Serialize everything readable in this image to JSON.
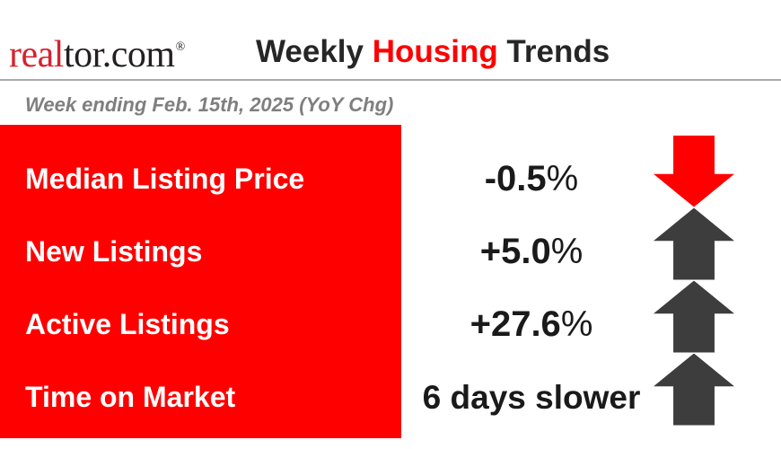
{
  "logo": {
    "prefix": "real",
    "suffix": "tor.com",
    "registered": "®",
    "prefix_color": "#d6232e",
    "suffix_color": "#231f20"
  },
  "header": {
    "title_prefix": "Weekly ",
    "title_highlight": "Housing",
    "title_suffix": " Trends",
    "highlight_color": "#ff0000",
    "text_color": "#262626"
  },
  "subtitle": "Week ending Feb. 15th, 2025 (YoY Chg)",
  "panel": {
    "background": "#ff0000"
  },
  "rows": [
    {
      "label": "Median Listing Price",
      "value": "-0.5",
      "suffix": "%",
      "arrow": "down",
      "arrow_color": "#ff0000"
    },
    {
      "label": "New Listings",
      "value": "+5.0",
      "suffix": "%",
      "arrow": "up",
      "arrow_color": "#3d3d3d"
    },
    {
      "label": "Active Listings",
      "value": "+27.6",
      "suffix": "%",
      "arrow": "up",
      "arrow_color": "#3d3d3d"
    },
    {
      "label": "Time on Market",
      "value": "6 days slower",
      "suffix": "",
      "arrow": "up",
      "arrow_color": "#3d3d3d"
    }
  ],
  "chart_data": {
    "type": "table",
    "title": "Weekly Housing Trends",
    "subtitle": "Week ending Feb. 15th, 2025 (YoY Chg)",
    "categories": [
      "Median Listing Price",
      "New Listings",
      "Active Listings",
      "Time on Market"
    ],
    "values": [
      "-0.5%",
      "+5.0%",
      "+27.6%",
      "6 days slower"
    ],
    "directions": [
      "down",
      "up",
      "up",
      "up"
    ],
    "direction_colors": [
      "#ff0000",
      "#3d3d3d",
      "#3d3d3d",
      "#3d3d3d"
    ]
  }
}
